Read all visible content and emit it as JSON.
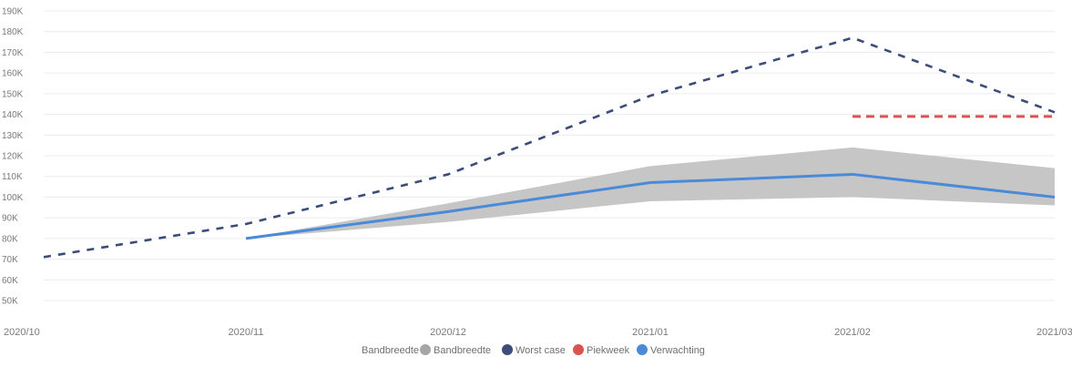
{
  "chart_data": {
    "type": "line",
    "x": [
      "2020/10",
      "2020/11",
      "2020/12",
      "2021/01",
      "2021/02",
      "2021/03"
    ],
    "ylim": [
      50000,
      190000
    ],
    "y_ticks": [
      50000,
      60000,
      70000,
      80000,
      90000,
      100000,
      110000,
      120000,
      130000,
      140000,
      150000,
      160000,
      170000,
      180000,
      190000
    ],
    "y_tick_labels": [
      "50K",
      "60K",
      "70K",
      "80K",
      "90K",
      "100K",
      "110K",
      "120K",
      "130K",
      "140K",
      "150K",
      "160K",
      "170K",
      "180K",
      "190K"
    ],
    "grid": "horizontal",
    "legend": {
      "placement": "bottom-center",
      "title": "Bandbreedte",
      "entries": [
        {
          "name": "Bandbreedte",
          "color": "#a6a6a6"
        },
        {
          "name": "Worst case",
          "color": "#3c4d7a"
        },
        {
          "name": "Piekweek",
          "color": "#d9534f"
        },
        {
          "name": "Verwachting",
          "color": "#4a8ad8"
        }
      ]
    },
    "band": {
      "name": "Bandbreedte",
      "color": "#c6c6c6",
      "x": [
        "2020/11",
        "2020/12",
        "2021/01",
        "2021/02",
        "2021/03"
      ],
      "lower": [
        80000,
        88000,
        98000,
        100000,
        96000
      ],
      "upper": [
        80000,
        97000,
        115000,
        124000,
        114000
      ]
    },
    "series": [
      {
        "name": "Worst case",
        "color": "#3c4d7a",
        "style": "dashed",
        "x": [
          "2020/10",
          "2020/11",
          "2020/12",
          "2021/01",
          "2021/02",
          "2021/03"
        ],
        "values": [
          71000,
          87000,
          111000,
          149000,
          177000,
          141000
        ]
      },
      {
        "name": "Piekweek",
        "color": "#d9534f",
        "style": "dashed",
        "x": [
          "2021/02",
          "2021/03"
        ],
        "values": [
          139000,
          139000
        ]
      },
      {
        "name": "Verwachting",
        "color": "#4a8ad8",
        "style": "solid",
        "x": [
          "2020/11",
          "2020/12",
          "2021/01",
          "2021/02",
          "2021/03"
        ],
        "values": [
          80000,
          93000,
          107000,
          111000,
          100000
        ]
      }
    ]
  }
}
